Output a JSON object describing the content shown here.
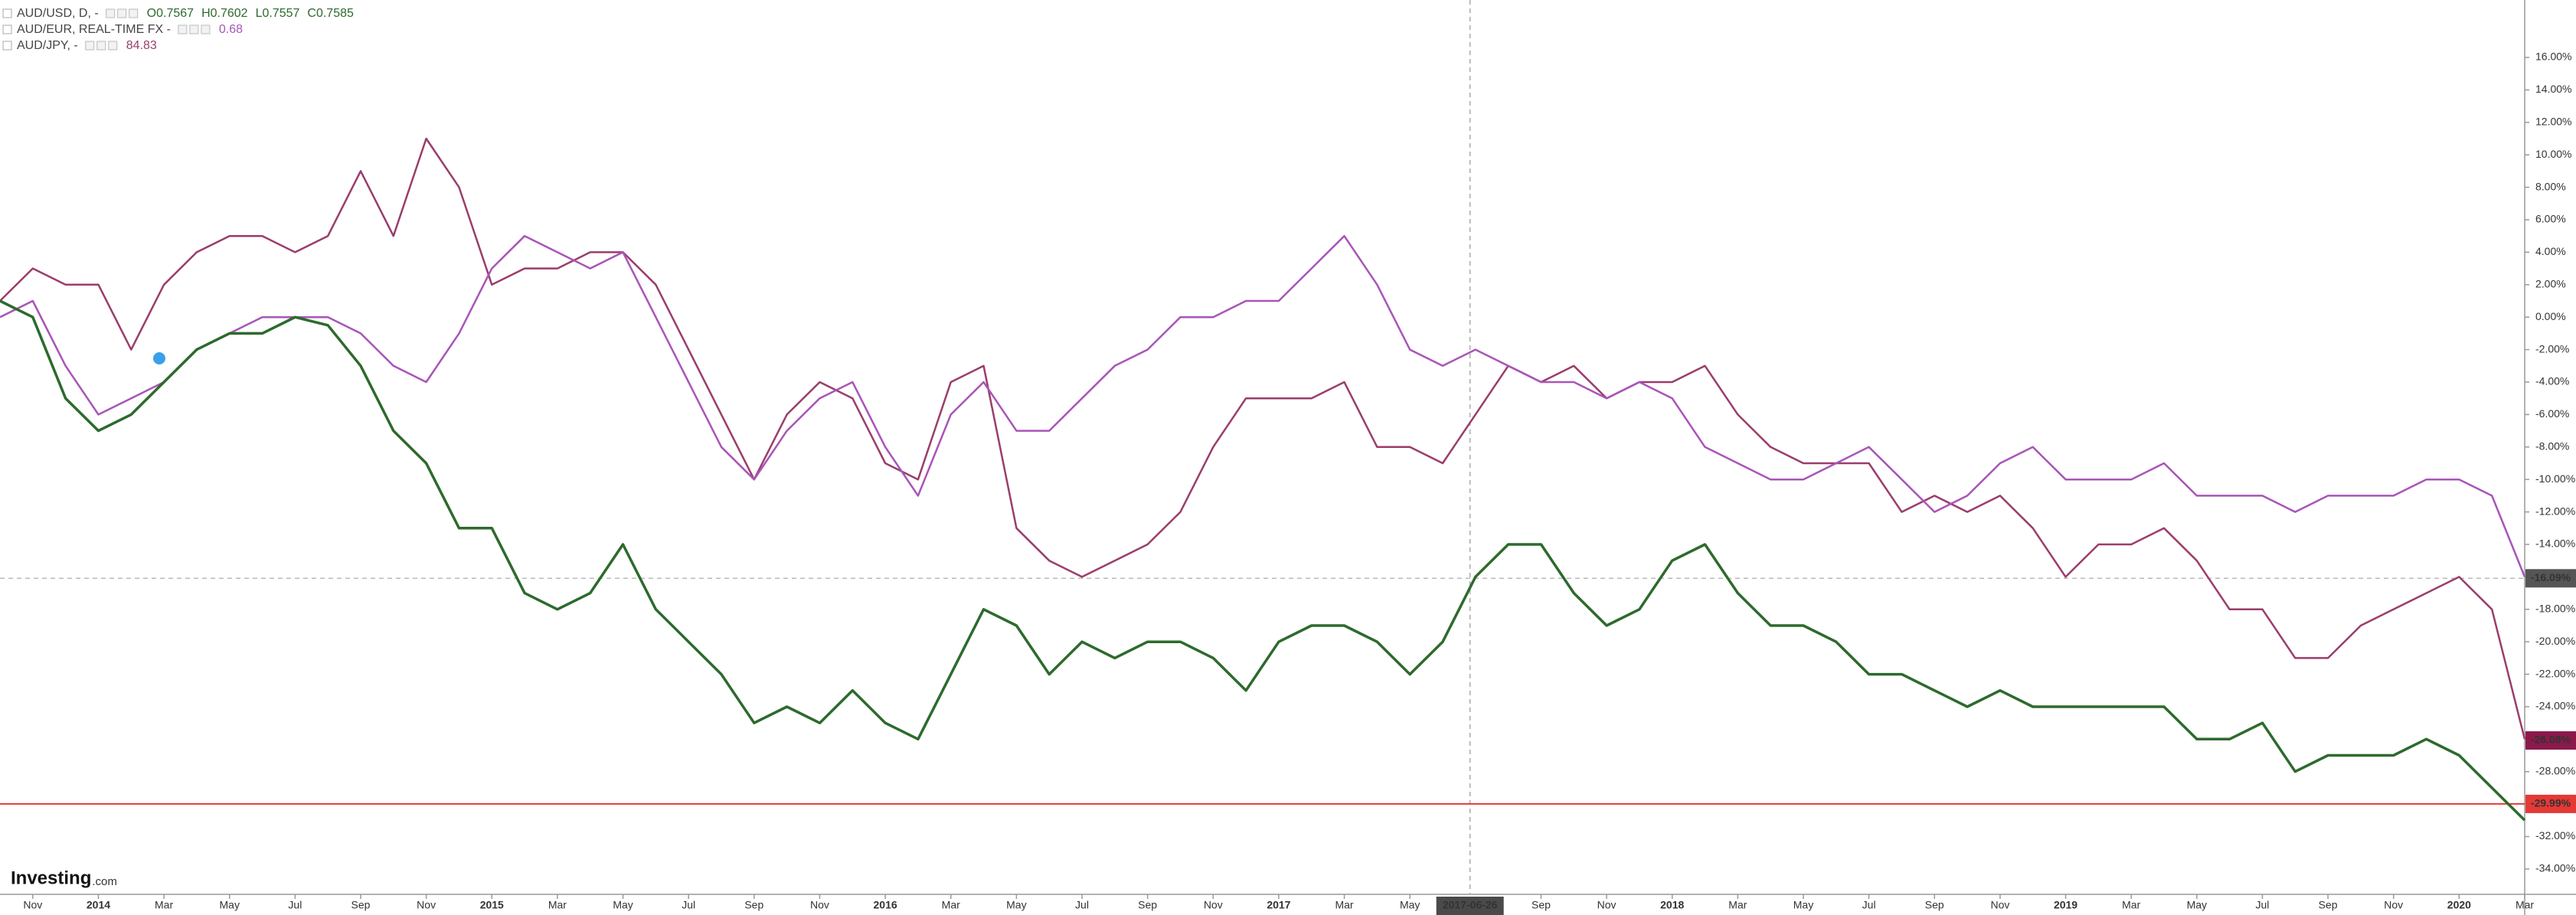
{
  "chart_data": {
    "type": "line",
    "header": [
      {
        "name": "AUD/USD, D, -",
        "quote": [
          "O0.7567",
          "H0.7602",
          "L0.7557",
          "C0.7585"
        ]
      },
      {
        "name": "AUD/EUR, REAL-TIME FX -",
        "quote": [
          "0.68"
        ]
      },
      {
        "name": "AUD/JPY, -",
        "quote": [
          "84.83"
        ]
      }
    ],
    "logo": [
      "Investing",
      ".com"
    ],
    "x": [
      "2013-10",
      "2013-11",
      "2013-12",
      "2014-01",
      "2014-02",
      "2014-03",
      "2014-04",
      "2014-05",
      "2014-06",
      "2014-07",
      "2014-08",
      "2014-09",
      "2014-10",
      "2014-11",
      "2014-12",
      "2015-01",
      "2015-02",
      "2015-03",
      "2015-04",
      "2015-05",
      "2015-06",
      "2015-07",
      "2015-08",
      "2015-09",
      "2015-10",
      "2015-11",
      "2015-12",
      "2016-01",
      "2016-02",
      "2016-03",
      "2016-04",
      "2016-05",
      "2016-06",
      "2016-07",
      "2016-08",
      "2016-09",
      "2016-10",
      "2016-11",
      "2016-12",
      "2017-01",
      "2017-02",
      "2017-03",
      "2017-04",
      "2017-05",
      "2017-06",
      "2017-07",
      "2017-08",
      "2017-09",
      "2017-10",
      "2017-11",
      "2017-12",
      "2018-01",
      "2018-02",
      "2018-03",
      "2018-04",
      "2018-05",
      "2018-06",
      "2018-07",
      "2018-08",
      "2018-09",
      "2018-10",
      "2018-11",
      "2018-12",
      "2019-01",
      "2019-02",
      "2019-03",
      "2019-04",
      "2019-05",
      "2019-06",
      "2019-07",
      "2019-08",
      "2019-09",
      "2019-10",
      "2019-11",
      "2019-12",
      "2020-01",
      "2020-02",
      "2020-03"
    ],
    "series": [
      {
        "name": "AUD/USD",
        "color": "#2d6a2d",
        "values": [
          1,
          0,
          -5,
          -7,
          -6,
          -4,
          -2,
          -1,
          -1,
          0,
          -0.5,
          -3,
          -7,
          -9,
          -13,
          -13,
          -17,
          -18,
          -17,
          -14,
          -18,
          -20,
          -22,
          -25,
          -24,
          -25,
          -23,
          -25,
          -26,
          -22,
          -18,
          -19,
          -22,
          -20,
          -21,
          -20,
          -20,
          -21,
          -23,
          -20,
          -19,
          -19,
          -20,
          -22,
          -20,
          -16,
          -14,
          -14,
          -17,
          -19,
          -18,
          -15,
          -14,
          -17,
          -19,
          -19,
          -20,
          -22,
          -22,
          -23,
          -24,
          -23,
          -24,
          -24,
          -24,
          -24,
          -24,
          -26,
          -26,
          -25,
          -28,
          -27,
          -27,
          -27,
          -26,
          -27,
          -29,
          -31
        ]
      },
      {
        "name": "AUD/EUR",
        "color": "#a855b8",
        "values": [
          0,
          1,
          -3,
          -6,
          -5,
          -4,
          -2,
          -1,
          0,
          0,
          0,
          -1,
          -3,
          -4,
          -1,
          3,
          5,
          4,
          3,
          4,
          0,
          -4,
          -8,
          -10,
          -7,
          -5,
          -4,
          -8,
          -11,
          -6,
          -4,
          -7,
          -7,
          -5,
          -3,
          -2,
          0,
          0,
          1,
          1,
          3,
          5,
          2,
          -2,
          -3,
          -2,
          -3,
          -4,
          -4,
          -5,
          -4,
          -5,
          -8,
          -9,
          -10,
          -10,
          -9,
          -8,
          -10,
          -12,
          -11,
          -9,
          -8,
          -10,
          -10,
          -10,
          -9,
          -11,
          -11,
          -11,
          -12,
          -11,
          -11,
          -11,
          -10,
          -10,
          -11,
          -16
        ]
      },
      {
        "name": "AUD/JPY",
        "color": "#9a3d6c",
        "values": [
          1,
          3,
          2,
          2,
          -2,
          2,
          4,
          5,
          5,
          4,
          5,
          9,
          5,
          11,
          8,
          2,
          3,
          3,
          4,
          4,
          2,
          -2,
          -6,
          -10,
          -6,
          -4,
          -5,
          -9,
          -10,
          -4,
          -3,
          -13,
          -15,
          -16,
          -15,
          -14,
          -12,
          -8,
          -5,
          -5,
          -5,
          -4,
          -8,
          -8,
          -9,
          -6,
          -3,
          -4,
          -3,
          -5,
          -4,
          -4,
          -3,
          -6,
          -8,
          -9,
          -9,
          -9,
          -12,
          -11,
          -12,
          -11,
          -13,
          -16,
          -14,
          -14,
          -13,
          -15,
          -18,
          -18,
          -21,
          -21,
          -19,
          -18,
          -17,
          -16,
          -18,
          -26
        ]
      }
    ],
    "xlim": [
      "2013-10",
      "2020-03"
    ],
    "xticks": [
      {
        "value": "2013-11",
        "label": "Nov"
      },
      {
        "value": "2014-01",
        "label": "2014"
      },
      {
        "value": "2014-03",
        "label": "Mar"
      },
      {
        "value": "2014-05",
        "label": "May"
      },
      {
        "value": "2014-07",
        "label": "Jul"
      },
      {
        "value": "2014-09",
        "label": "Sep"
      },
      {
        "value": "2014-11",
        "label": "Nov"
      },
      {
        "value": "2015-01",
        "label": "2015"
      },
      {
        "value": "2015-03",
        "label": "Mar"
      },
      {
        "value": "2015-05",
        "label": "May"
      },
      {
        "value": "2015-07",
        "label": "Jul"
      },
      {
        "value": "2015-09",
        "label": "Sep"
      },
      {
        "value": "2015-11",
        "label": "Nov"
      },
      {
        "value": "2016-01",
        "label": "2016"
      },
      {
        "value": "2016-03",
        "label": "Mar"
      },
      {
        "value": "2016-05",
        "label": "May"
      },
      {
        "value": "2016-07",
        "label": "Jul"
      },
      {
        "value": "2016-09",
        "label": "Sep"
      },
      {
        "value": "2016-11",
        "label": "Nov"
      },
      {
        "value": "2017-01",
        "label": "2017"
      },
      {
        "value": "2017-03",
        "label": "Mar"
      },
      {
        "value": "2017-05",
        "label": "May"
      },
      {
        "value": "2017-09",
        "label": "Sep"
      },
      {
        "value": "2017-11",
        "label": "Nov"
      },
      {
        "value": "2018-01",
        "label": "2018"
      },
      {
        "value": "2018-03",
        "label": "Mar"
      },
      {
        "value": "2018-05",
        "label": "May"
      },
      {
        "value": "2018-07",
        "label": "Jul"
      },
      {
        "value": "2018-09",
        "label": "Sep"
      },
      {
        "value": "2018-11",
        "label": "Nov"
      },
      {
        "value": "2019-01",
        "label": "2019"
      },
      {
        "value": "2019-03",
        "label": "Mar"
      },
      {
        "value": "2019-05",
        "label": "May"
      },
      {
        "value": "2019-07",
        "label": "Jul"
      },
      {
        "value": "2019-09",
        "label": "Sep"
      },
      {
        "value": "2019-11",
        "label": "Nov"
      },
      {
        "value": "2020-01",
        "label": "2020"
      },
      {
        "value": "2020-03",
        "label": "Mar"
      }
    ],
    "ylim": [
      -35.56,
      19.54
    ],
    "yticks": [
      {
        "value": 16,
        "label": "16.00%"
      },
      {
        "value": 14,
        "label": "14.00%"
      },
      {
        "value": 12,
        "label": "12.00%"
      },
      {
        "value": 10,
        "label": "10.00%"
      },
      {
        "value": 8,
        "label": "8.00%"
      },
      {
        "value": 6,
        "label": "6.00%"
      },
      {
        "value": 4,
        "label": "4.00%"
      },
      {
        "value": 2,
        "label": "2.00%"
      },
      {
        "value": 0,
        "label": "0.00%"
      },
      {
        "value": -2,
        "label": "-2.00%"
      },
      {
        "value": -4,
        "label": "-4.00%"
      },
      {
        "value": -6,
        "label": "-6.00%"
      },
      {
        "value": -8,
        "label": "-8.00%"
      },
      {
        "value": -10,
        "label": "-10.00%"
      },
      {
        "value": -12,
        "label": "-12.00%"
      },
      {
        "value": -14,
        "label": "-14.00%"
      },
      {
        "value": -16,
        "label": "-16.00%"
      },
      {
        "value": -18,
        "label": "-18.00%"
      },
      {
        "value": -20,
        "label": "-20.00%"
      },
      {
        "value": -22,
        "label": "-22.00%"
      },
      {
        "value": -24,
        "label": "-24.00%"
      },
      {
        "value": -26,
        "label": "-26.00%"
      },
      {
        "value": -28,
        "label": "-28.00%"
      },
      {
        "value": -30,
        "label": "-30.00%"
      },
      {
        "value": -32,
        "label": "-32.00%"
      },
      {
        "value": -34,
        "label": "-34.00%"
      }
    ],
    "price_labels": [
      {
        "value": -16.09,
        "label": "-16.09%",
        "color": "#555555",
        "line": "dashed"
      },
      {
        "value": -26.08,
        "label": "-26.08%",
        "color": "#8b1a4a",
        "line": "none"
      },
      {
        "value": -29.99,
        "label": "-29.99%",
        "color": "#e53935",
        "line": "solid"
      }
    ],
    "crosshair": {
      "x": "2017-06-26",
      "label": "2017-06-26"
    }
  }
}
